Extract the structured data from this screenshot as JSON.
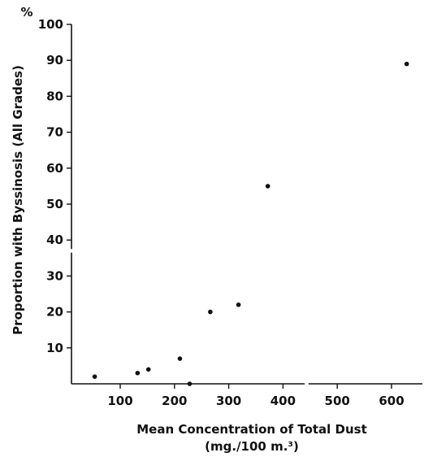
{
  "chart_data": {
    "type": "scatter",
    "title": "",
    "xlabel": "Mean Concentration of Total Dust",
    "xlabel_units": "(mg./100 m.³)",
    "ylabel": "Proportion with Byssinosis (All Grades)",
    "yunit": "%",
    "xlim": [
      0,
      680
    ],
    "ylim": [
      0,
      100
    ],
    "x_ticks": [
      100,
      200,
      300,
      400,
      500,
      600
    ],
    "y_ticks": [
      10,
      20,
      30,
      40,
      50,
      60,
      70,
      80,
      90,
      100
    ],
    "grid": false,
    "legend": "none",
    "points": [
      {
        "x": 53,
        "y": 2
      },
      {
        "x": 132,
        "y": 3
      },
      {
        "x": 152,
        "y": 4
      },
      {
        "x": 210,
        "y": 7
      },
      {
        "x": 228,
        "y": 0
      },
      {
        "x": 266,
        "y": 20
      },
      {
        "x": 318,
        "y": 22
      },
      {
        "x": 372,
        "y": 55
      },
      {
        "x": 628,
        "y": 89
      }
    ]
  }
}
